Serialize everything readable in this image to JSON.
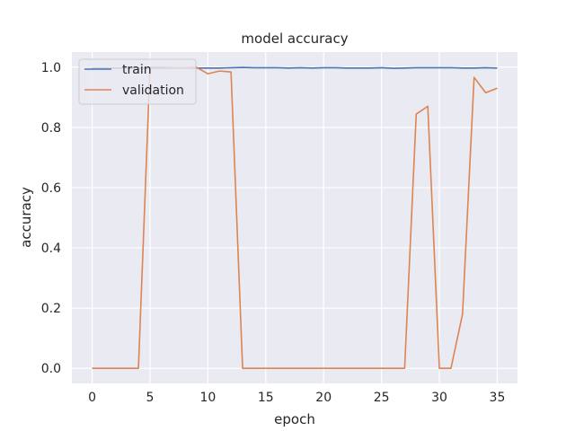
{
  "chart_data": {
    "type": "line",
    "title": "model accuracy",
    "xlabel": "epoch",
    "ylabel": "accuracy",
    "xlim": [
      -1.75,
      36.75
    ],
    "ylim": [
      -0.05,
      1.05
    ],
    "xticks": [
      0,
      5,
      10,
      15,
      20,
      25,
      30,
      35
    ],
    "yticks": [
      0.0,
      0.2,
      0.4,
      0.6,
      0.8,
      1.0
    ],
    "xtick_labels": [
      "0",
      "5",
      "10",
      "15",
      "20",
      "25",
      "30",
      "35"
    ],
    "ytick_labels": [
      "0.0",
      "0.2",
      "0.4",
      "0.6",
      "0.8",
      "1.0"
    ],
    "grid": true,
    "legend_position": "top-left",
    "x": [
      0,
      1,
      2,
      3,
      4,
      5,
      6,
      7,
      8,
      9,
      10,
      11,
      12,
      13,
      14,
      15,
      16,
      17,
      18,
      19,
      20,
      21,
      22,
      23,
      24,
      25,
      26,
      27,
      28,
      29,
      30,
      31,
      32,
      33,
      34,
      35
    ],
    "series": [
      {
        "name": "train",
        "color": "#4c72b0",
        "values": [
          0.997,
          0.997,
          0.997,
          0.997,
          0.997,
          0.997,
          0.997,
          0.997,
          0.997,
          0.997,
          0.997,
          0.997,
          0.998,
          0.999,
          0.998,
          0.998,
          0.998,
          0.997,
          0.998,
          0.997,
          0.998,
          0.998,
          0.997,
          0.997,
          0.997,
          0.998,
          0.996,
          0.997,
          0.998,
          0.998,
          0.998,
          0.998,
          0.997,
          0.997,
          0.998,
          0.997
        ]
      },
      {
        "name": "validation",
        "color": "#dd8452",
        "values": [
          0.0,
          0.0,
          0.0,
          0.0,
          0.0,
          1.0,
          1.0,
          0.998,
          0.998,
          1.0,
          0.978,
          0.987,
          0.984,
          0.0,
          0.0,
          0.0,
          0.0,
          0.0,
          0.0,
          0.0,
          0.0,
          0.0,
          0.0,
          0.0,
          0.0,
          0.0,
          0.0,
          0.0,
          0.844,
          0.87,
          0.0,
          0.0,
          0.18,
          0.966,
          0.915,
          0.93
        ]
      }
    ]
  }
}
